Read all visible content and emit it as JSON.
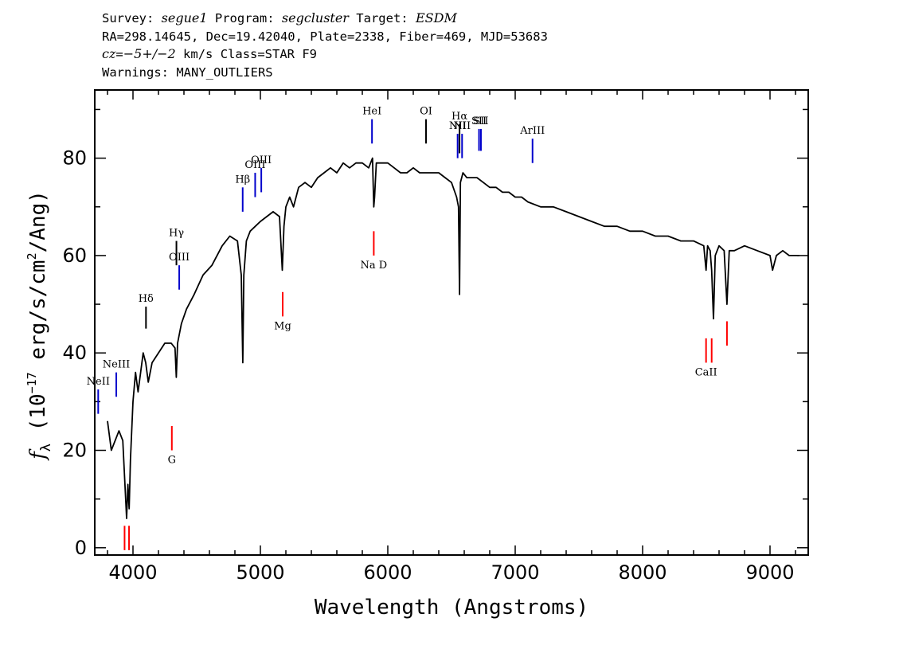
{
  "header": {
    "survey_label": "Survey:",
    "survey": "segue1",
    "program_label": "Program:",
    "program": "segcluster",
    "target_label": "Target:",
    "target": "ESDM",
    "line2": "RA=298.14645, Dec=19.42040, Plate=2338, Fiber=469, MJD=53683",
    "cz_symbol": "cz",
    "cz_eq": "=",
    "cz_value": "−5+/−2",
    "cz_rest": " km/s Class=STAR F9",
    "warnings": "Warnings: MANY_OUTLIERS"
  },
  "chart_data": {
    "type": "line",
    "xlabel": "Wavelength (Angstroms)",
    "ylabel": "f_λ (10^-17 erg/s/cm^2/Ang)",
    "xlim": [
      3700,
      9300
    ],
    "ylim": [
      -1.5,
      94
    ],
    "xticks": [
      4000,
      5000,
      6000,
      7000,
      8000,
      9000
    ],
    "yticks": [
      0,
      20,
      40,
      60,
      80
    ],
    "series": [
      {
        "color": "#000000",
        "x": [
          3800,
          3830,
          3860,
          3890,
          3920,
          3935,
          3950,
          3960,
          3970,
          3980,
          4000,
          4020,
          4040,
          4060,
          4080,
          4100,
          4120,
          4150,
          4200,
          4250,
          4300,
          4330,
          4340,
          4350,
          4380,
          4420,
          4480,
          4550,
          4620,
          4700,
          4760,
          4820,
          4850,
          4862,
          4870,
          4890,
          4920,
          4960,
          5000,
          5050,
          5100,
          5150,
          5172,
          5185,
          5200,
          5230,
          5260,
          5300,
          5350,
          5400,
          5450,
          5500,
          5550,
          5600,
          5650,
          5700,
          5750,
          5800,
          5850,
          5880,
          5890,
          5896,
          5910,
          5950,
          6000,
          6050,
          6100,
          6150,
          6200,
          6250,
          6300,
          6350,
          6400,
          6450,
          6500,
          6540,
          6555,
          6563,
          6570,
          6590,
          6620,
          6660,
          6700,
          6750,
          6800,
          6850,
          6900,
          6950,
          7000,
          7050,
          7100,
          7200,
          7300,
          7400,
          7500,
          7600,
          7700,
          7800,
          7900,
          8000,
          8100,
          8200,
          8300,
          8400,
          8480,
          8498,
          8510,
          8530,
          8542,
          8556,
          8570,
          8600,
          8640,
          8662,
          8680,
          8720,
          8800,
          8900,
          9000,
          9020,
          9050,
          9100,
          9150,
          9200,
          9230
        ],
        "values": [
          26,
          20,
          22,
          24,
          22,
          14,
          6,
          13,
          8,
          18,
          30,
          36,
          32,
          36,
          40,
          38,
          34,
          38,
          40,
          42,
          42,
          41,
          35,
          42,
          46,
          49,
          52,
          56,
          58,
          62,
          64,
          63,
          56,
          38,
          56,
          63,
          65,
          66,
          67,
          68,
          69,
          68,
          57,
          66,
          70,
          72,
          70,
          74,
          75,
          74,
          76,
          77,
          78,
          77,
          79,
          78,
          79,
          79,
          78,
          80,
          70,
          72,
          79,
          79,
          79,
          78,
          77,
          77,
          78,
          77,
          77,
          77,
          77,
          76,
          75,
          72,
          70,
          52,
          75,
          77,
          76,
          76,
          76,
          75,
          74,
          74,
          73,
          73,
          72,
          72,
          71,
          70,
          70,
          69,
          68,
          67,
          66,
          66,
          65,
          65,
          64,
          64,
          63,
          63,
          62,
          57,
          62,
          61,
          57,
          47,
          60,
          62,
          61,
          50,
          61,
          61,
          62,
          61,
          60,
          57,
          60,
          61,
          60,
          60,
          60
        ]
      }
    ],
    "emission_lines": [
      {
        "label": "NeII",
        "x": 3727,
        "y0": 27.5,
        "y1": 32.5,
        "color": "#0000cc"
      },
      {
        "label": "NeIII",
        "x": 3869,
        "y0": 31,
        "y1": 36,
        "color": "#0000cc"
      },
      {
        "label": "Hδ",
        "x": 4102,
        "y0": 45,
        "y1": 49.5,
        "color": "#000000"
      },
      {
        "label": "Hγ",
        "x": 4341,
        "y0": 58,
        "y1": 63,
        "color": "#000000"
      },
      {
        "label": "OIII",
        "x": 4363,
        "y0": 53,
        "y1": 58,
        "color": "#0000cc"
      },
      {
        "label": "Hβ",
        "x": 4861,
        "y0": 69,
        "y1": 74,
        "color": "#0000cc"
      },
      {
        "label": "OIII",
        "x": 4959,
        "y0": 72,
        "y1": 77,
        "color": "#0000cc"
      },
      {
        "label": "OIII",
        "x": 5007,
        "y0": 73,
        "y1": 78,
        "color": "#0000cc"
      },
      {
        "label": "HeI",
        "x": 5876,
        "y0": 83,
        "y1": 88,
        "color": "#0000cc"
      },
      {
        "label": "OI",
        "x": 6300,
        "y0": 83,
        "y1": 88,
        "color": "#000000"
      },
      {
        "label": "NII",
        "x": 6548,
        "y0": 80,
        "y1": 85,
        "color": "#0000cc"
      },
      {
        "label": "Hα",
        "x": 6563,
        "y0": 81,
        "y1": 87,
        "color": "#000000"
      },
      {
        "label": "NII",
        "x": 6583,
        "y0": 80,
        "y1": 85,
        "color": "#0000cc"
      },
      {
        "label": "SII",
        "x": 6716,
        "y0": 81.5,
        "y1": 86,
        "color": "#0000cc"
      },
      {
        "label": "SII",
        "x": 6731,
        "y0": 81.5,
        "y1": 86,
        "color": "#0000cc"
      },
      {
        "label": "ArIII",
        "x": 7136,
        "y0": 79,
        "y1": 84,
        "color": "#0000cc"
      }
    ],
    "absorption_lines": [
      {
        "label": "Na D",
        "x": 5890,
        "y0": 60,
        "y1": 65,
        "color": "#ff0000"
      },
      {
        "label": "Mg",
        "x": 5175,
        "y0": 47.5,
        "y1": 52.5,
        "color": "#ff0000"
      },
      {
        "label": "G",
        "x": 4305,
        "y0": 20,
        "y1": 25,
        "color": "#ff0000"
      },
      {
        "label": "",
        "x": 3934,
        "y0": -0.5,
        "y1": 4.5,
        "color": "#ff0000"
      },
      {
        "label": "",
        "x": 3969,
        "y0": -0.5,
        "y1": 4.5,
        "color": "#ff0000"
      },
      {
        "label": "CaII",
        "x": 8498,
        "y0": 38,
        "y1": 43,
        "color": "#ff0000"
      },
      {
        "label": "",
        "x": 8542,
        "y0": 38,
        "y1": 43,
        "color": "#ff0000"
      },
      {
        "label": "",
        "x": 8662,
        "y0": 41.5,
        "y1": 46.5,
        "color": "#ff0000"
      }
    ]
  }
}
